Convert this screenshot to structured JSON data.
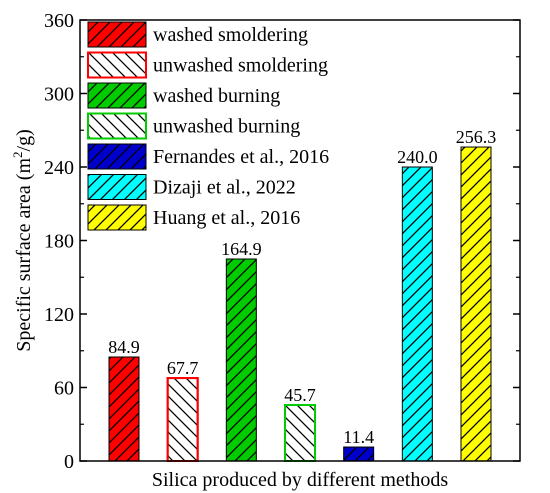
{
  "chart_data": {
    "type": "bar",
    "xlabel": "Silica produced by different methods",
    "ylabel_main": "Specific surface area (m",
    "ylabel_sup": "2",
    "ylabel_tail": "/g)",
    "ylim": [
      0,
      360
    ],
    "yticks": [
      0,
      60,
      120,
      180,
      240,
      300,
      360
    ],
    "grid": false,
    "legend_position": "top-left",
    "series": [
      {
        "name": "washed smoldering",
        "value": 84.9,
        "label": "84.9",
        "color": "#ff0000",
        "filled": true,
        "hatch": "forward"
      },
      {
        "name": "unwashed smoldering",
        "value": 67.7,
        "label": "67.7",
        "color": "#ff0000",
        "filled": false,
        "hatch": "back"
      },
      {
        "name": "washed burning",
        "value": 164.9,
        "label": "164.9",
        "color": "#00cc00",
        "filled": true,
        "hatch": "forward"
      },
      {
        "name": "unwashed burning",
        "value": 45.7,
        "label": "45.7",
        "color": "#00cc00",
        "filled": false,
        "hatch": "back"
      },
      {
        "name": "Fernandes et al., 2016",
        "value": 11.4,
        "label": "11.4",
        "color": "#0000cc",
        "filled": true,
        "hatch": "forward"
      },
      {
        "name": "Dizaji et al., 2022",
        "value": 240.0,
        "label": "240.0",
        "color": "#00ffff",
        "filled": true,
        "hatch": "forward"
      },
      {
        "name": "Huang et al., 2016",
        "value": 256.3,
        "label": "256.3",
        "color": "#ffff00",
        "filled": true,
        "hatch": "forward"
      }
    ]
  }
}
